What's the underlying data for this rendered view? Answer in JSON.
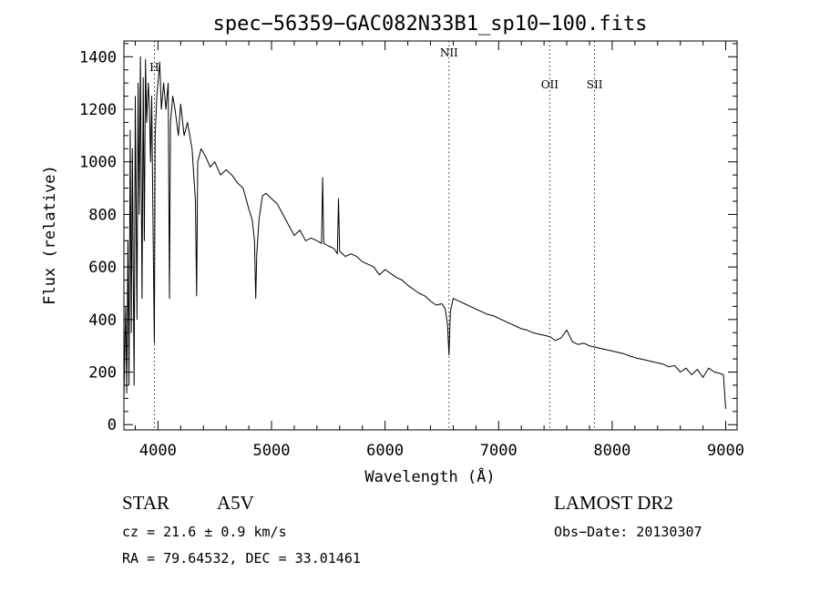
{
  "chart_data": {
    "type": "line",
    "title": "spec−56359−GAC082N33B1_sp10−100.fits",
    "xlabel": "Wavelength (Å)",
    "ylabel": "Flux (relative)",
    "xlim": [
      3700,
      9100
    ],
    "ylim": [
      -20,
      1460
    ],
    "x_ticks": [
      4000,
      5000,
      6000,
      7000,
      8000,
      9000
    ],
    "x_tick_labels": [
      "4000",
      "5000",
      "6000",
      "7000",
      "8000",
      "9000"
    ],
    "y_ticks": [
      0,
      200,
      400,
      600,
      800,
      1000,
      1200,
      1400
    ],
    "y_tick_labels": [
      "0",
      "200",
      "400",
      "600",
      "800",
      "1000",
      "1200",
      "1400"
    ],
    "grid": false,
    "series": [
      {
        "x": [
          3700,
          3715,
          3725,
          3735,
          3745,
          3755,
          3765,
          3775,
          3790,
          3800,
          3815,
          3825,
          3835,
          3845,
          3860,
          3870,
          3880,
          3890,
          3900,
          3915,
          3925,
          3935,
          3945,
          3960,
          3968,
          3975,
          3990,
          4000,
          4015,
          4030,
          4050,
          4070,
          4090,
          4101,
          4110,
          4130,
          4150,
          4180,
          4200,
          4230,
          4260,
          4300,
          4330,
          4340,
          4350,
          4380,
          4420,
          4460,
          4500,
          4550,
          4600,
          4650,
          4700,
          4750,
          4800,
          4830,
          4850,
          4861,
          4870,
          4890,
          4920,
          4950,
          5000,
          5050,
          5100,
          5150,
          5200,
          5250,
          5300,
          5350,
          5400,
          5440,
          5450,
          5460,
          5500,
          5550,
          5580,
          5590,
          5600,
          5650,
          5700,
          5750,
          5800,
          5850,
          5900,
          5950,
          6000,
          6050,
          6100,
          6150,
          6200,
          6250,
          6300,
          6350,
          6400,
          6450,
          6500,
          6530,
          6550,
          6563,
          6575,
          6600,
          6650,
          6700,
          6750,
          6800,
          6850,
          6900,
          6950,
          7000,
          7050,
          7100,
          7150,
          7200,
          7250,
          7300,
          7350,
          7400,
          7450,
          7500,
          7550,
          7600,
          7650,
          7700,
          7750,
          7800,
          7850,
          7900,
          7950,
          8000,
          8050,
          8100,
          8150,
          8200,
          8250,
          8300,
          8350,
          8400,
          8450,
          8500,
          8550,
          8600,
          8650,
          8700,
          8750,
          8800,
          8850,
          8900,
          8950,
          8980,
          9000
        ],
        "y": [
          100,
          450,
          120,
          700,
          150,
          1120,
          350,
          1050,
          150,
          1250,
          400,
          1300,
          800,
          1400,
          480,
          1320,
          700,
          1390,
          1150,
          1300,
          1200,
          1000,
          1250,
          620,
          310,
          1100,
          1250,
          1300,
          1380,
          1200,
          1300,
          1200,
          1300,
          480,
          1150,
          1250,
          1200,
          1100,
          1220,
          1100,
          1150,
          1050,
          850,
          490,
          1000,
          1050,
          1020,
          980,
          1000,
          950,
          970,
          950,
          920,
          900,
          820,
          780,
          700,
          480,
          650,
          780,
          870,
          880,
          860,
          840,
          800,
          760,
          720,
          740,
          700,
          710,
          700,
          690,
          940,
          690,
          680,
          670,
          650,
          860,
          660,
          640,
          650,
          640,
          620,
          610,
          600,
          570,
          590,
          575,
          560,
          550,
          530,
          515,
          500,
          490,
          470,
          455,
          460,
          440,
          380,
          265,
          430,
          480,
          470,
          460,
          450,
          440,
          430,
          420,
          415,
          405,
          395,
          385,
          375,
          365,
          360,
          350,
          345,
          340,
          335,
          320,
          330,
          360,
          315,
          305,
          310,
          300,
          295,
          290,
          285,
          280,
          275,
          270,
          262,
          255,
          250,
          245,
          240,
          235,
          230,
          220,
          225,
          200,
          215,
          190,
          210,
          180,
          215,
          200,
          195,
          190,
          60
        ]
      }
    ],
    "annotations": [
      {
        "label": "H",
        "x": 3968
      },
      {
        "label": "NII",
        "x": 6563
      },
      {
        "label": "OII",
        "x": 7450
      },
      {
        "label": "SII",
        "x": 7845
      }
    ]
  },
  "info": {
    "object_type": "STAR",
    "subclass": "A5V",
    "survey": "LAMOST DR2",
    "cz_text": "cz = 21.6 ± 0.9 km/s",
    "obs_date_text": "Obs−Date: 20130307",
    "coords_text": "RA =  79.64532, DEC =  33.01461"
  }
}
